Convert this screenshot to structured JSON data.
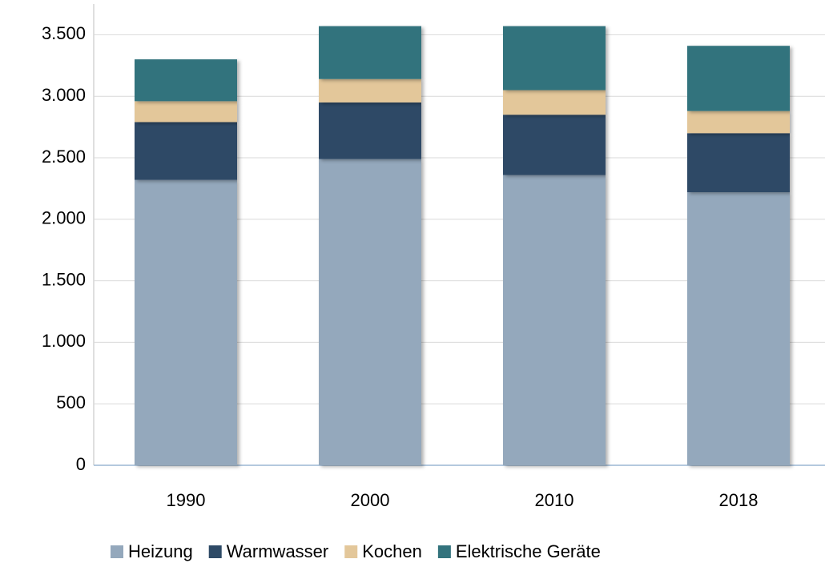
{
  "chart_data": {
    "type": "bar",
    "stacked": true,
    "categories": [
      "1990",
      "2000",
      "2010",
      "2018"
    ],
    "series": [
      {
        "name": "Heizung",
        "color": "#94a8bc",
        "values": [
          2320,
          2490,
          2360,
          2220
        ]
      },
      {
        "name": "Warmwasser",
        "color": "#2e4a66",
        "values": [
          470,
          460,
          490,
          480
        ]
      },
      {
        "name": "Kochen",
        "color": "#e3c79a",
        "values": [
          170,
          190,
          200,
          180
        ]
      },
      {
        "name": "Elektrische Geräte",
        "color": "#33737d",
        "values": [
          340,
          430,
          520,
          530
        ]
      }
    ],
    "ylim": [
      0,
      3750
    ],
    "yticks": [
      0,
      500,
      {
        "value": 1000,
        "label": "1.000"
      },
      {
        "value": 1500,
        "label": "1.500"
      },
      {
        "value": 2000,
        "label": "2.000"
      },
      {
        "value": 2500,
        "label": "2.500"
      },
      {
        "value": 3000,
        "label": "3.000"
      },
      {
        "value": 3500,
        "label": "3.500"
      }
    ],
    "grid": true,
    "legend": "bottom"
  }
}
